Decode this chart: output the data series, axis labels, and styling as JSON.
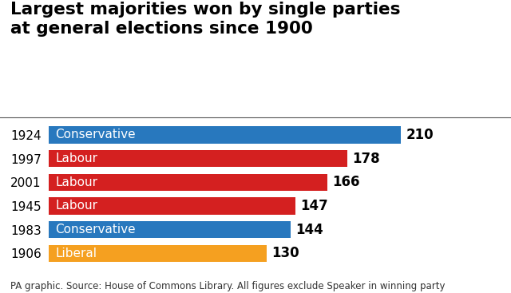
{
  "title": "Largest majorities won by single parties\nat general elections since 1900",
  "caption": "PA graphic. Source: House of Commons Library. All figures exclude Speaker in winning party",
  "years": [
    "1924",
    "1997",
    "2001",
    "1945",
    "1983",
    "1906"
  ],
  "parties": [
    "Conservative",
    "Labour",
    "Labour",
    "Labour",
    "Conservative",
    "Liberal"
  ],
  "values": [
    210,
    178,
    166,
    147,
    144,
    130
  ],
  "colors": [
    "#2878BE",
    "#D42020",
    "#D42020",
    "#D42020",
    "#2878BE",
    "#F5A020"
  ],
  "bar_label_color": "white",
  "value_label_color": "black",
  "background_color": "#FFFFFF",
  "title_fontsize": 15.5,
  "bar_fontsize": 11,
  "value_fontsize": 12,
  "caption_fontsize": 8.5,
  "year_fontsize": 11,
  "xlim": [
    0,
    245
  ]
}
